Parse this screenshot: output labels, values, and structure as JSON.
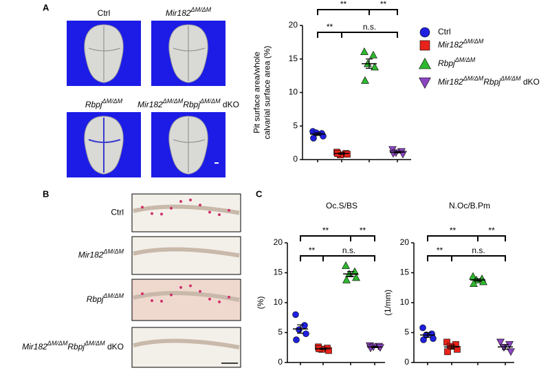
{
  "panel_labels": [
    "A",
    "B",
    "C"
  ],
  "skull_images": [
    {
      "label": [
        {
          "text": "Ctrl",
          "style": ""
        }
      ]
    },
    {
      "label": [
        {
          "text": "Mir182",
          "style": "i"
        },
        {
          "text": "ΔM/ΔM",
          "style": "sup"
        }
      ]
    },
    {
      "label": [
        {
          "text": "Rbpj",
          "style": "i"
        },
        {
          "text": "ΔM/ΔM",
          "style": "sup"
        }
      ]
    },
    {
      "label": [
        {
          "text": "Mir182",
          "style": "i"
        },
        {
          "text": "ΔM/ΔM",
          "style": "sup"
        },
        {
          "text": "Rbpj",
          "style": "i"
        },
        {
          "text": "ΔM/ΔM",
          "style": "sup"
        },
        {
          "text": " dKO",
          "style": ""
        }
      ]
    }
  ],
  "histology_images": [
    {
      "label": [
        {
          "text": "Ctrl",
          "style": ""
        }
      ]
    },
    {
      "label": [
        {
          "text": "Mir182",
          "style": "i"
        },
        {
          "text": "ΔM/ΔM",
          "style": "sup"
        }
      ]
    },
    {
      "label": [
        {
          "text": "Rbpj",
          "style": "i"
        },
        {
          "text": "ΔM/ΔM",
          "style": "sup"
        }
      ]
    },
    {
      "label": [
        {
          "text": "Mir182",
          "style": "i"
        },
        {
          "text": "ΔM/ΔM",
          "style": "sup"
        },
        {
          "text": "Rbpj",
          "style": "i"
        },
        {
          "text": "ΔM/ΔM",
          "style": "sup"
        },
        {
          "text": " dKO",
          "style": ""
        }
      ]
    }
  ],
  "chart_data": [
    {
      "type": "dot",
      "ylabel": [
        "Pit surface area/whole",
        "calvarial surface area (%)"
      ],
      "ylim": [
        0,
        20
      ],
      "yticks": [
        0,
        5,
        10,
        15,
        20
      ],
      "legend": "right",
      "series": [
        {
          "name": [
            {
              "text": "Ctrl",
              "style": ""
            }
          ],
          "color": "#2020e0",
          "marker": "circle",
          "values": [
            4.2,
            3.9,
            4.0,
            3.5,
            3.2
          ],
          "mean": 3.8,
          "sem": 0.2
        },
        {
          "name": [
            {
              "text": "Mir182",
              "style": "i"
            },
            {
              "text": "ΔM/ΔM",
              "style": "sup"
            }
          ],
          "color": "#e8231a",
          "marker": "square",
          "values": [
            1.1,
            0.9,
            0.7,
            0.8,
            0.9
          ],
          "mean": 0.9,
          "sem": 0.1
        },
        {
          "name": [
            {
              "text": "Rbpj",
              "style": "i"
            },
            {
              "text": "ΔM/ΔM",
              "style": "sup"
            }
          ],
          "color": "#2eb82e",
          "marker": "triangle",
          "values": [
            16.1,
            15.6,
            14.3,
            13.8,
            11.8
          ],
          "mean": 14.3,
          "sem": 0.7
        },
        {
          "name": [
            {
              "text": "Mir182",
              "style": "i"
            },
            {
              "text": "ΔM/ΔM",
              "style": "sup"
            },
            {
              "text": "Rbpj",
              "style": "i"
            },
            {
              "text": "ΔM/ΔM",
              "style": "sup"
            },
            {
              "text": " dKO",
              "style": ""
            }
          ],
          "color": "#8b45c0",
          "marker": "triangle-down",
          "values": [
            1.5,
            1.2,
            1.0,
            0.8,
            0.9
          ],
          "mean": 1.1,
          "sem": 0.1
        }
      ],
      "brackets": [
        [
          {
            "from": 0,
            "to": 2,
            "label": "**"
          },
          {
            "from": 2,
            "to": 3,
            "label": "**"
          }
        ],
        [
          {
            "from": 0,
            "to": 1,
            "label": "**"
          },
          {
            "from": 1,
            "to": 3,
            "label": "n.s."
          }
        ]
      ]
    },
    {
      "type": "dot",
      "title": "Oc.S/BS",
      "ylabel": [
        "(%)"
      ],
      "ylim": [
        0,
        20
      ],
      "yticks": [
        0,
        5,
        10,
        15,
        20
      ],
      "series": [
        {
          "color": "#2020e0",
          "marker": "circle",
          "values": [
            8.0,
            6.2,
            5.5,
            4.8,
            3.8
          ],
          "mean": 5.6,
          "sem": 0.7
        },
        {
          "color": "#e8231a",
          "marker": "square",
          "values": [
            2.6,
            2.4,
            2.2,
            2.0,
            2.3
          ],
          "mean": 2.3,
          "sem": 0.1
        },
        {
          "color": "#2eb82e",
          "marker": "triangle",
          "values": [
            16.2,
            15.2,
            14.8,
            14.2,
            13.8
          ],
          "mean": 14.8,
          "sem": 0.4
        },
        {
          "color": "#8b45c0",
          "marker": "triangle-down",
          "values": [
            2.8,
            2.7,
            2.6,
            2.5,
            2.4
          ],
          "mean": 2.6,
          "sem": 0.1
        }
      ],
      "brackets": [
        [
          {
            "from": 0,
            "to": 2,
            "label": "**"
          },
          {
            "from": 2,
            "to": 3,
            "label": "**"
          }
        ],
        [
          {
            "from": 0,
            "to": 1,
            "label": "**"
          },
          {
            "from": 1,
            "to": 3,
            "label": "n.s."
          }
        ]
      ]
    },
    {
      "type": "dot",
      "title": "N.Oc/B.Pm",
      "ylabel": [
        "(1/mm)"
      ],
      "ylim": [
        0,
        20
      ],
      "yticks": [
        0,
        5,
        10,
        15,
        20
      ],
      "series": [
        {
          "color": "#2020e0",
          "marker": "circle",
          "values": [
            5.8,
            4.8,
            4.6,
            4.0,
            3.8
          ],
          "mean": 4.6,
          "sem": 0.4
        },
        {
          "color": "#e8231a",
          "marker": "square",
          "values": [
            3.4,
            3.0,
            2.7,
            2.2,
            1.8
          ],
          "mean": 2.6,
          "sem": 0.3
        },
        {
          "color": "#2eb82e",
          "marker": "triangle",
          "values": [
            14.4,
            14.0,
            13.8,
            13.5,
            13.2
          ],
          "mean": 13.8,
          "sem": 0.2
        },
        {
          "color": "#8b45c0",
          "marker": "triangle-down",
          "values": [
            3.4,
            3.0,
            2.5,
            1.8
          ],
          "mean": 2.6,
          "sem": 0.4
        }
      ],
      "brackets": [
        [
          {
            "from": 0,
            "to": 2,
            "label": "**"
          },
          {
            "from": 2,
            "to": 3,
            "label": "**"
          }
        ],
        [
          {
            "from": 0,
            "to": 1,
            "label": "**"
          },
          {
            "from": 1,
            "to": 3,
            "label": "n.s."
          }
        ]
      ]
    }
  ]
}
